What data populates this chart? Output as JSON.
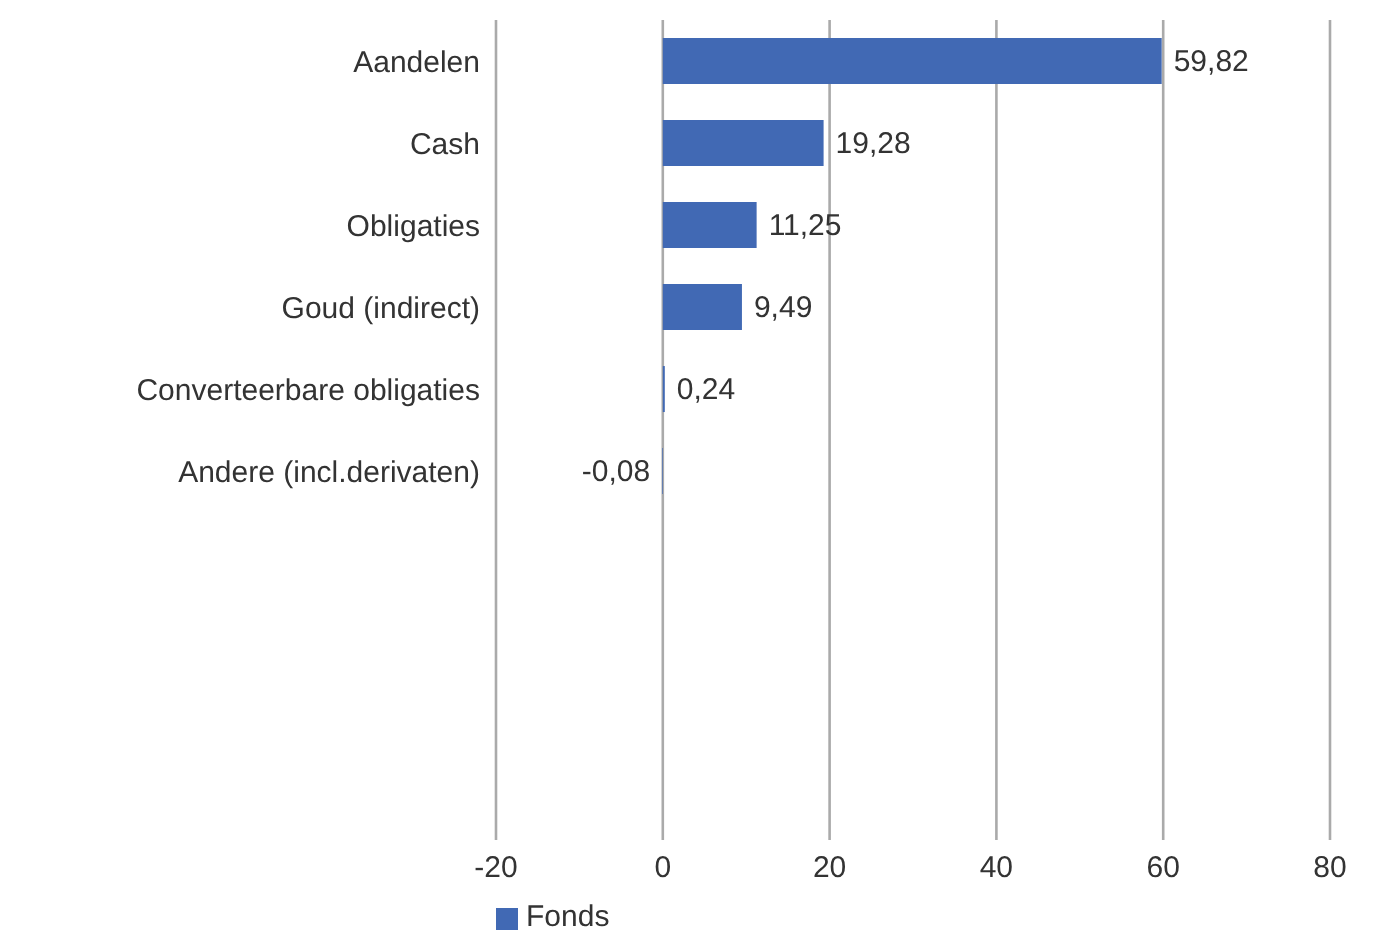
{
  "chart_data": {
    "type": "bar",
    "orientation": "horizontal",
    "categories": [
      "Aandelen",
      "Cash",
      "Obligaties",
      "Goud (indirect)",
      "Converteerbare obligaties",
      "Andere (incl.derivaten)",
      null,
      null,
      null,
      null
    ],
    "series": [
      {
        "name": "Fonds",
        "color": "#4169b4",
        "values": [
          59.82,
          19.28,
          11.25,
          9.49,
          0.24,
          -0.08,
          null,
          null,
          null,
          null
        ],
        "value_labels": [
          "59,82",
          "19,28",
          "11,25",
          "9,49",
          "0,24",
          "-0,08",
          null,
          null,
          null,
          null
        ]
      }
    ],
    "xlim": [
      -20,
      80
    ],
    "xticks": [
      -20,
      0,
      20,
      40,
      60,
      80
    ],
    "grid": "x",
    "legend": "bottom left"
  }
}
